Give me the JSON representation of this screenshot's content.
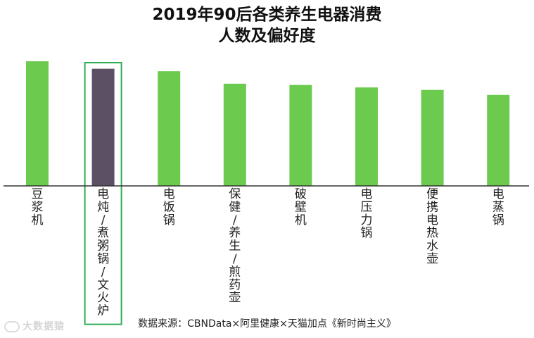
{
  "title_line1": "2019年90后各类养生电器消费",
  "title_line2": "人数及偏好度",
  "source": "数据来源：CBNData×阿里健康×天猫加点《新时尚主义》",
  "watermark": "大数据猿",
  "colors": {
    "bar": "#6ccb4f",
    "highlight_bar": "#5b5064",
    "highlight_box": "#2fae55",
    "axis": "#333333"
  },
  "chart_data": {
    "type": "bar",
    "title": "2019年90后各类养生电器消费人数及偏好度",
    "categories": [
      "豆浆机",
      "电炖/煮粥锅/文火炉",
      "电饭锅",
      "保健/养生/煎药壶",
      "破壁机",
      "电压力锅",
      "便携电热水壶",
      "电蒸锅"
    ],
    "category_lines": [
      [
        "豆",
        "浆",
        "机"
      ],
      [
        "电",
        "炖",
        "/",
        "煮",
        "粥",
        "锅",
        "/",
        "文",
        "火",
        "炉"
      ],
      [
        "电",
        "饭",
        "锅"
      ],
      [
        "保",
        "健",
        "/",
        "养",
        "生",
        "/",
        "煎",
        "药",
        "壶"
      ],
      [
        "破",
        "壁",
        "机"
      ],
      [
        "电",
        "压",
        "力",
        "锅"
      ],
      [
        "便",
        "携",
        "电",
        "热",
        "水",
        "壶"
      ],
      [
        "电",
        "蒸",
        "锅"
      ]
    ],
    "values": [
      100,
      94,
      92,
      82,
      81,
      79,
      77,
      73
    ],
    "highlight_index": 1,
    "ylim": [
      0,
      100
    ],
    "axis_labels_shown": false,
    "grid": false,
    "legend": "none"
  }
}
